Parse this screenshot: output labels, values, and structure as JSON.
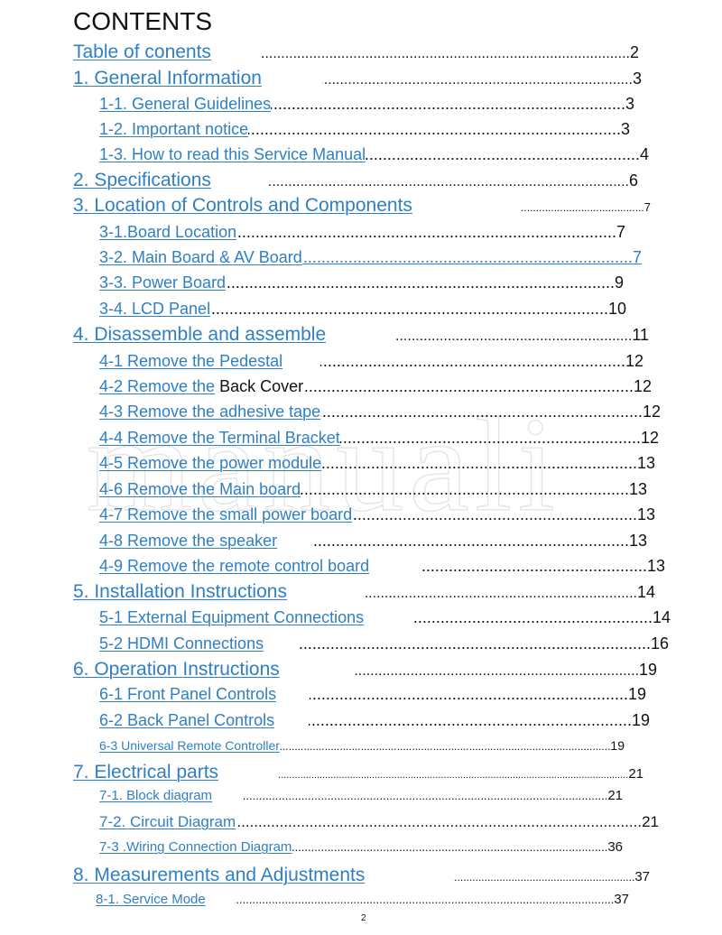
{
  "watermark": "manuali",
  "title": "CONTENTS",
  "page_number": "2",
  "link_color": "#2f7fc4",
  "entries": [
    {
      "label": "Table of conents",
      "page": "2"
    },
    {
      "label": "1. General Information",
      "page": "3"
    },
    {
      "label": "1-1. General Guidelines",
      "page": "3"
    },
    {
      "label": "1-2. Important notice",
      "page": "3"
    },
    {
      "label": "1-3. How to read this Service Manual",
      "page": "4"
    },
    {
      "label": "2. Specifications",
      "page": "6"
    },
    {
      "label": "3. Location of Controls and Components",
      "page": "7"
    },
    {
      "label": "3-1.Board Location",
      "page": "7"
    },
    {
      "label": "3-2. Main Board & AV Board",
      "page": "7"
    },
    {
      "label": "3-3. Power Board",
      "page": "9"
    },
    {
      "label": "3-4. LCD Panel",
      "page": "10"
    },
    {
      "label": "4. Disassemble and assemble",
      "page": "11"
    },
    {
      "label": "4-1 Remove the Pedestal",
      "page": "12"
    },
    {
      "label": "4-2 Remove the",
      "label_suffix": "Back Cover",
      "page": "12"
    },
    {
      "label": "4-3 Remove the adhesive tape",
      "page": "12"
    },
    {
      "label": "4-4 Remove the Terminal Bracket",
      "page": "12"
    },
    {
      "label": "4-5 Remove the power module",
      "page": "13"
    },
    {
      "label": "4-6 Remove the Main board",
      "page": "13"
    },
    {
      "label": "4-7 Remove the small power board",
      "page": "13"
    },
    {
      "label": "4-8 Remove the speaker",
      "page": "13"
    },
    {
      "label": "4-9 Remove the remote control board",
      "page": "13"
    },
    {
      "label": "5. Installation Instructions",
      "page": "14"
    },
    {
      "label": "5-1 External Equipment Connections",
      "page": "14"
    },
    {
      "label": "5-2 HDMI Connections",
      "page": "16"
    },
    {
      "label": "6. Operation Instructions",
      "page": "19"
    },
    {
      "label": "6-1 Front Panel Controls",
      "page": "19"
    },
    {
      "label": "6-2 Back Panel Controls",
      "page": "19"
    },
    {
      "label": "6-3 Universal Remote Controller",
      "page": "19"
    },
    {
      "label": "7. Electrical parts",
      "page": "21"
    },
    {
      "label": "7-1. Block diagram",
      "page": "21"
    },
    {
      "label": "7-2. Circuit Diagram",
      "page": "21"
    },
    {
      "label": "7-3 .Wiring Connection Diagram",
      "page": "36"
    },
    {
      "label": "8. Measurements and Adjustments",
      "page": "37"
    },
    {
      "label": "8-1. Service Mode",
      "page": "37"
    }
  ]
}
